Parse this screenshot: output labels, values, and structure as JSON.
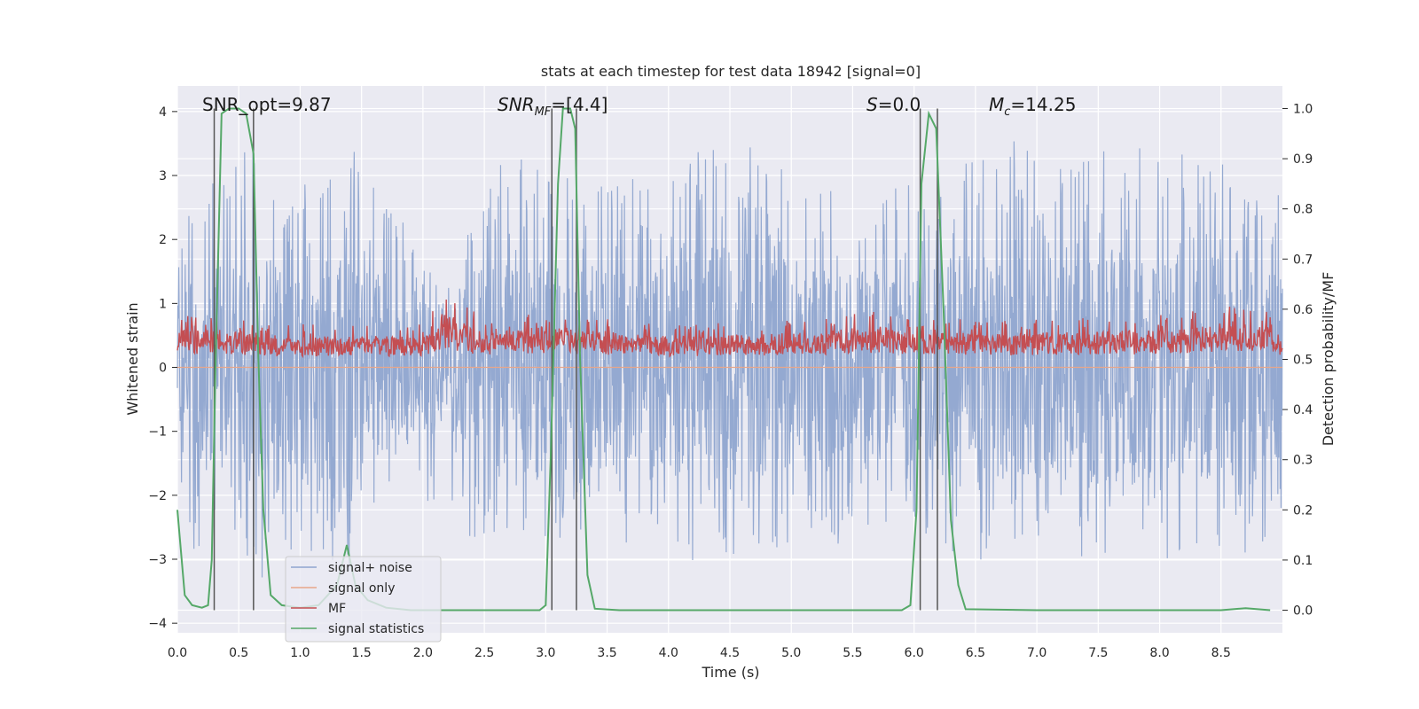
{
  "chart_data": {
    "type": "line",
    "title": "stats at each timestep for test data 18942 [signal=0]",
    "xlabel": "Time (s)",
    "ylabel_left": "Whitened strain",
    "ylabel_right": "Detection probability/MF",
    "xlim": [
      0.0,
      9.0
    ],
    "ylim_left": [
      -4.15,
      4.4
    ],
    "ylim_right": [
      -0.045,
      1.045
    ],
    "x_ticks": [
      "0.0",
      "0.5",
      "1.0",
      "1.5",
      "2.0",
      "2.5",
      "3.0",
      "3.5",
      "4.0",
      "4.5",
      "5.0",
      "5.5",
      "6.0",
      "6.5",
      "7.0",
      "7.5",
      "8.0",
      "8.5"
    ],
    "y_ticks_left": [
      "4",
      "3",
      "2",
      "1",
      "0",
      "−1",
      "−2",
      "−3",
      "−4"
    ],
    "y_ticks_right": [
      "1.0",
      "0.9",
      "0.8",
      "0.7",
      "0.6",
      "0.5",
      "0.4",
      "0.3",
      "0.2",
      "0.1",
      "0.0"
    ],
    "grid": true,
    "legend_placement": "lower-left",
    "annotations": {
      "snr_opt": "SNR_opt=9.87",
      "snr_mf_base": "SNR",
      "snr_mf_sub": "MF",
      "snr_mf_value": "=[4.4]",
      "s_var": "S",
      "s_value": "=0.0",
      "mc_var": "M",
      "mc_sub": "c",
      "mc_value": "=14.25"
    },
    "vertical_markers": [
      0.3,
      0.62,
      3.05,
      3.25,
      6.05,
      6.19
    ],
    "series": [
      {
        "name": "signal+ noise",
        "color": "#8fa5cf",
        "axis": "left",
        "envelope": {
          "x": [
            0.0,
            0.3,
            0.6,
            1.0,
            1.4,
            1.8,
            2.2,
            2.6,
            3.0,
            3.3,
            3.6,
            4.0,
            4.4,
            4.8,
            5.2,
            5.6,
            6.0,
            6.4,
            6.8,
            7.2,
            7.6,
            8.0,
            8.4,
            8.7,
            9.0
          ],
          "upper": [
            2.1,
            3.0,
            3.5,
            2.8,
            3.5,
            2.4,
            1.2,
            3.3,
            3.2,
            2.9,
            3.0,
            2.8,
            4.0,
            3.3,
            3.0,
            2.9,
            2.9,
            3.3,
            3.6,
            3.3,
            3.5,
            3.5,
            3.4,
            3.0,
            3.0
          ],
          "lower": [
            -3.2,
            -2.8,
            -3.4,
            -2.9,
            -3.3,
            -2.5,
            -2.2,
            -3.2,
            -2.7,
            -2.9,
            -2.9,
            -2.8,
            -3.3,
            -3.1,
            -2.9,
            -2.6,
            -2.5,
            -3.2,
            -2.8,
            -2.9,
            -3.5,
            -3.0,
            -3.0,
            -3.2,
            -2.3
          ]
        }
      },
      {
        "name": "signal only",
        "color": "#e8a68a",
        "axis": "left",
        "x": [
          0.0,
          9.0
        ],
        "y": [
          0.0,
          0.0
        ]
      },
      {
        "name": "MF",
        "color": "#c44e52",
        "axis": "right",
        "envelope": {
          "x": [
            0.0,
            1.0,
            2.0,
            2.17,
            2.5,
            3.0,
            4.0,
            5.0,
            5.7,
            6.0,
            7.0,
            8.0,
            8.7,
            9.0
          ],
          "upper": [
            0.6,
            0.57,
            0.57,
            0.64,
            0.58,
            0.6,
            0.57,
            0.58,
            0.6,
            0.58,
            0.58,
            0.59,
            0.62,
            0.58
          ],
          "lower": [
            0.49,
            0.49,
            0.49,
            0.49,
            0.49,
            0.49,
            0.49,
            0.49,
            0.49,
            0.49,
            0.49,
            0.49,
            0.49,
            0.49
          ]
        }
      },
      {
        "name": "signal statistics",
        "color": "#55a868",
        "axis": "right",
        "x": [
          0.0,
          0.06,
          0.12,
          0.2,
          0.25,
          0.28,
          0.31,
          0.36,
          0.42,
          0.5,
          0.56,
          0.62,
          0.66,
          0.7,
          0.76,
          0.85,
          1.0,
          1.15,
          1.3,
          1.38,
          1.45,
          1.55,
          1.7,
          1.9,
          2.2,
          2.6,
          2.95,
          3.0,
          3.04,
          3.1,
          3.14,
          3.2,
          3.24,
          3.28,
          3.34,
          3.4,
          3.6,
          4.0,
          5.0,
          5.9,
          5.97,
          6.02,
          6.06,
          6.12,
          6.18,
          6.24,
          6.3,
          6.36,
          6.42,
          7.0,
          8.0,
          8.5,
          8.7,
          8.9
        ],
        "y": [
          0.2,
          0.03,
          0.01,
          0.005,
          0.01,
          0.1,
          0.48,
          0.99,
          1.0,
          1.0,
          0.99,
          0.91,
          0.5,
          0.2,
          0.03,
          0.01,
          0.005,
          0.01,
          0.05,
          0.13,
          0.05,
          0.02,
          0.005,
          0.0,
          0.0,
          0.0,
          0.0,
          0.01,
          0.3,
          0.85,
          1.0,
          1.0,
          0.96,
          0.5,
          0.07,
          0.003,
          0.0,
          0.0,
          0.0,
          0.0,
          0.01,
          0.2,
          0.85,
          0.99,
          0.96,
          0.6,
          0.18,
          0.05,
          0.002,
          0.0,
          0.0,
          0.0,
          0.004,
          0.0
        ]
      }
    ]
  }
}
